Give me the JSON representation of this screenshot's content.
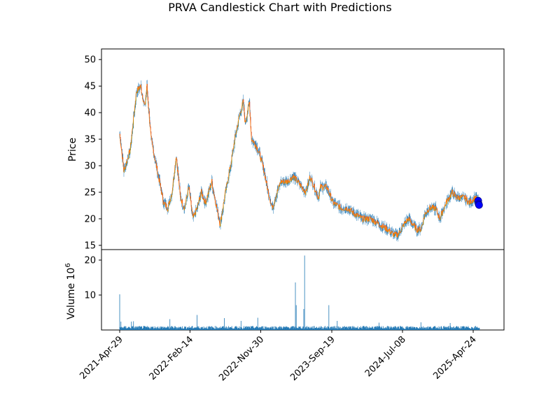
{
  "chart_data": {
    "type": "candlestick",
    "title": "PRVA Candlestick Chart with Predictions",
    "price_panel": {
      "ylabel": "Price",
      "ylim": [
        14.2,
        52.0
      ],
      "yticks": [
        15,
        20,
        25,
        30,
        35,
        40,
        45,
        50
      ],
      "up_color": "#2ca02c",
      "down_color": "#d62728",
      "wick_color": "#1f77b4",
      "close_line_color": "#ff7f0e",
      "close_path": [
        [
          0,
          36
        ],
        [
          10,
          29
        ],
        [
          25,
          33
        ],
        [
          40,
          44
        ],
        [
          50,
          45
        ],
        [
          60,
          41
        ],
        [
          65,
          45
        ],
        [
          75,
          35
        ],
        [
          90,
          29
        ],
        [
          105,
          23
        ],
        [
          115,
          22
        ],
        [
          125,
          25
        ],
        [
          135,
          32
        ],
        [
          145,
          24
        ],
        [
          155,
          22
        ],
        [
          165,
          26
        ],
        [
          175,
          20
        ],
        [
          185,
          22
        ],
        [
          195,
          25
        ],
        [
          205,
          23
        ],
        [
          220,
          27
        ],
        [
          232,
          22
        ],
        [
          240,
          19
        ],
        [
          255,
          26
        ],
        [
          265,
          30
        ],
        [
          275,
          35
        ],
        [
          285,
          39
        ],
        [
          295,
          42
        ],
        [
          300,
          38
        ],
        [
          310,
          42
        ],
        [
          315,
          35
        ],
        [
          325,
          34
        ],
        [
          335,
          32
        ],
        [
          345,
          29
        ],
        [
          355,
          25
        ],
        [
          365,
          22
        ],
        [
          372,
          24
        ],
        [
          385,
          27
        ],
        [
          400,
          27
        ],
        [
          415,
          28
        ],
        [
          425,
          27
        ],
        [
          435,
          26
        ],
        [
          445,
          25
        ],
        [
          455,
          28
        ],
        [
          465,
          26
        ],
        [
          475,
          24
        ],
        [
          480,
          26
        ],
        [
          495,
          26
        ],
        [
          510,
          23
        ],
        [
          530,
          22
        ],
        [
          545,
          22
        ],
        [
          560,
          21
        ],
        [
          580,
          20
        ],
        [
          600,
          20
        ],
        [
          620,
          19
        ],
        [
          640,
          18
        ],
        [
          655,
          17
        ],
        [
          665,
          17
        ],
        [
          680,
          19
        ],
        [
          690,
          20
        ],
        [
          700,
          19
        ],
        [
          710,
          18
        ],
        [
          720,
          18
        ],
        [
          730,
          21
        ],
        [
          740,
          22
        ],
        [
          755,
          22
        ],
        [
          765,
          20
        ],
        [
          780,
          23
        ],
        [
          795,
          25
        ],
        [
          805,
          24
        ],
        [
          815,
          24
        ],
        [
          825,
          24
        ],
        [
          835,
          23
        ],
        [
          850,
          24
        ],
        [
          860,
          23
        ]
      ],
      "predictions": [
        {
          "x": 857,
          "y": 23.4
        },
        {
          "x": 858,
          "y": 22.8
        },
        {
          "x": 859,
          "y": 22.6
        }
      ],
      "prediction_color": "#0000ff"
    },
    "volume_panel": {
      "ylabel": "Volume  10",
      "exponent": "6",
      "ylim": [
        0,
        23
      ],
      "yticks": [
        10,
        20
      ],
      "bar_color": "#1f77b4",
      "base_volume": 0.8,
      "spikes": [
        [
          0,
          10.2
        ],
        [
          3,
          2.4
        ],
        [
          28,
          2.4
        ],
        [
          33,
          2.5
        ],
        [
          120,
          3.1
        ],
        [
          185,
          4.3
        ],
        [
          250,
          3.4
        ],
        [
          290,
          2.6
        ],
        [
          330,
          3.5
        ],
        [
          420,
          13.6
        ],
        [
          422,
          7.1
        ],
        [
          440,
          6.0
        ],
        [
          442,
          21.3
        ],
        [
          500,
          7.1
        ],
        [
          520,
          2.6
        ],
        [
          620,
          2.1
        ],
        [
          720,
          2.2
        ],
        [
          790,
          2.0
        ]
      ]
    },
    "x_axis": {
      "n_days": 861,
      "tick_positions": [
        0,
        168,
        337,
        507,
        676,
        845
      ],
      "tick_labels": [
        "2021-Apr-29",
        "2022-Feb-14",
        "2022-Nov-30",
        "2023-Sep-19",
        "2024-Jul-08",
        "2025-Apr-24"
      ]
    }
  }
}
